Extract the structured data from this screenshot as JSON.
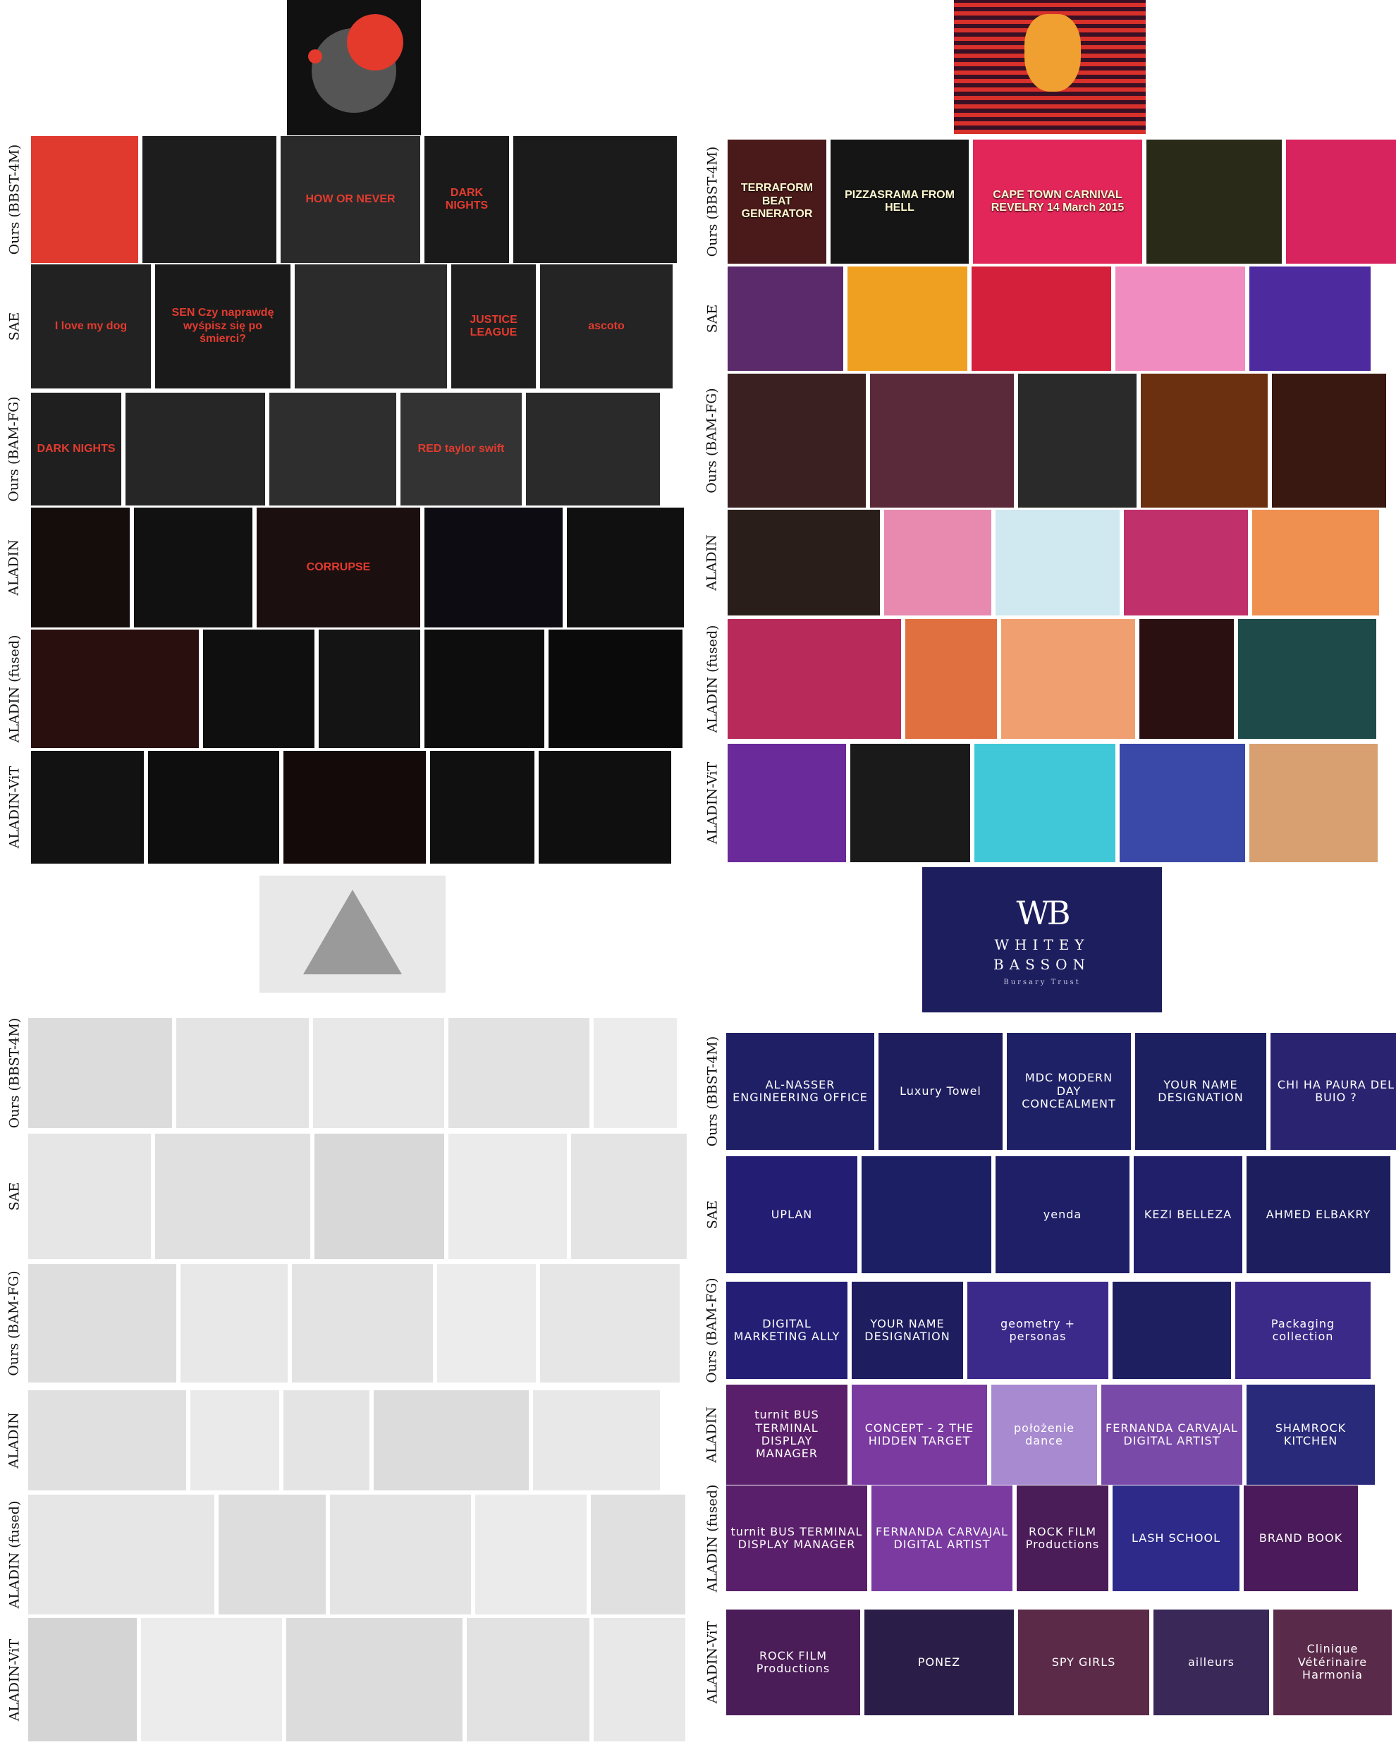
{
  "row_labels": [
    "Ours (BBST-4M)",
    "SAE",
    "Ours (BAM-FG)",
    "ALADIN",
    "ALADIN (fused)",
    "ALADIN-ViT"
  ],
  "panels": [
    {
      "theme": "red",
      "query": {
        "icon": "heart-flower-art-icon",
        "bg": "#111111",
        "accent": "#e33a2c"
      },
      "rows": [
        {
          "texts": [
            "",
            "",
            "HOW OR NEVER",
            "DARK NIGHTS",
            ""
          ],
          "colors": [
            "#e03a2e",
            "#1d1d1d",
            "#2a2a2a",
            "#1a1a1a",
            "#1b1b1b"
          ]
        },
        {
          "texts": [
            "I love my dog",
            "SEN Czy naprawdę wyśpisz się po śmierci?",
            "",
            "JUSTICE LEAGUE",
            "ascoto"
          ],
          "colors": [
            "#222222",
            "#1a1a1a",
            "#2b2b2b",
            "#1f1f1f",
            "#242424"
          ]
        },
        {
          "texts": [
            "DARK NIGHTS",
            "",
            "",
            "RED taylor swift",
            ""
          ],
          "colors": [
            "#1f1f1f",
            "#262626",
            "#2e2e2e",
            "#333333",
            "#2a2a2a"
          ]
        },
        {
          "texts": [
            "",
            "",
            "CORRUPSE",
            "",
            ""
          ],
          "colors": [
            "#150c0c",
            "#111111",
            "#1c0f0f",
            "#0c0c12",
            "#101010"
          ]
        },
        {
          "texts": [
            "",
            "",
            "",
            "",
            ""
          ],
          "colors": [
            "#2a0f0f",
            "#0f0f0f",
            "#141414",
            "#0d0d0d",
            "#0a0a0a"
          ]
        },
        {
          "texts": [
            "",
            "",
            "",
            "",
            ""
          ],
          "colors": [
            "#121212",
            "#0e0e0e",
            "#140a0a",
            "#101010",
            "#0f0f0f"
          ]
        }
      ]
    },
    {
      "theme": "pop",
      "query": {
        "icon": "portrait-art-icon",
        "bg": "#3a1024",
        "accent": "#f0a030"
      },
      "rows": [
        {
          "texts": [
            "TERRAFORM BEAT GENERATOR",
            "PIZZASRAMA FROM HELL",
            "CAPE TOWN CARNIVAL REVELRY 14 March 2015",
            "",
            ""
          ],
          "colors": [
            "#4a1a1a",
            "#151515",
            "#e2265a",
            "#2a2a18",
            "#d8245e"
          ]
        },
        {
          "texts": [
            "",
            "",
            "",
            "",
            ""
          ],
          "colors": [
            "#5b2a6b",
            "#f0a020",
            "#d4203a",
            "#f08cc0",
            "#4d2a9e"
          ]
        },
        {
          "texts": [
            "",
            "",
            "",
            "",
            ""
          ],
          "colors": [
            "#3a2020",
            "#5a2a3a",
            "#2a2a2a",
            "#6a3010",
            "#3a1812"
          ]
        },
        {
          "texts": [
            "",
            "",
            "",
            "",
            ""
          ],
          "colors": [
            "#2a1e1a",
            "#e88ab0",
            "#d0e8f0",
            "#c0306a",
            "#f09050"
          ]
        },
        {
          "texts": [
            "",
            "",
            "",
            "",
            ""
          ],
          "colors": [
            "#b82a5a",
            "#e07040",
            "#f0a070",
            "#2a1010",
            "#1e4a4a"
          ]
        },
        {
          "texts": [
            "",
            "",
            "",
            "",
            ""
          ],
          "colors": [
            "#6a2a9a",
            "#1a1a1a",
            "#40c8d8",
            "#3a48a8",
            "#d8a070"
          ]
        }
      ]
    },
    {
      "theme": "sketch",
      "query": {
        "icon": "pyramid-sketch-icon",
        "bg": "#e8e8e8",
        "accent": "#8a8a8a"
      },
      "rows": [
        {
          "texts": [
            "",
            "",
            "",
            "",
            ""
          ],
          "colors": [
            "#dcdcdc",
            "#e4e4e4",
            "#e8e8e8",
            "#e2e2e2",
            "#ececec"
          ]
        },
        {
          "texts": [
            "",
            "",
            "",
            "",
            ""
          ],
          "colors": [
            "#e6e6e6",
            "#e0e0e0",
            "#d8d8d8",
            "#ebebeb",
            "#e4e4e4"
          ]
        },
        {
          "texts": [
            "",
            "",
            "",
            "",
            ""
          ],
          "colors": [
            "#dedede",
            "#e8e8e8",
            "#e3e3e3",
            "#ececec",
            "#e6e6e6"
          ]
        },
        {
          "texts": [
            "",
            "",
            "",
            "",
            ""
          ],
          "colors": [
            "#e0e0e0",
            "#eaeaea",
            "#e4e4e4",
            "#dcdcdc",
            "#e8e8e8"
          ]
        },
        {
          "texts": [
            "",
            "",
            "",
            "",
            ""
          ],
          "colors": [
            "#e6e6e6",
            "#dddddd",
            "#e4e4e4",
            "#ebebeb",
            "#e0e0e0"
          ]
        },
        {
          "texts": [
            "",
            "",
            "",
            "",
            ""
          ],
          "colors": [
            "#d4d4d4",
            "#ececec",
            "#dcdcdc",
            "#e2e2e2",
            "#e8e8e8"
          ]
        }
      ]
    },
    {
      "theme": "brand",
      "query": {
        "icon": "monogram-logo-icon",
        "bg": "#1d1e5e",
        "accent": "#ffffff",
        "lines": [
          "WB",
          "WHITEY",
          "BASSON",
          "Bursary Trust"
        ]
      },
      "rows": [
        {
          "texts": [
            "AL-NASSER ENGINEERING OFFICE",
            "Luxury Towel",
            "MDC MODERN DAY CONCEALMENT",
            "YOUR NAME DESIGNATION",
            "CHI HA PAURA DEL BUIO ?"
          ],
          "colors": [
            "#1f1f66",
            "#1e1d5e",
            "#1e2166",
            "#1c1f60",
            "#2a2470"
          ]
        },
        {
          "texts": [
            "UPLAN",
            "",
            "yenda",
            "KEZI BELLEZA",
            "AHMED ELBAKRY"
          ],
          "colors": [
            "#241d74",
            "#1c1f64",
            "#1e1f66",
            "#221f6a",
            "#1d1e5e"
          ]
        },
        {
          "texts": [
            "DIGITAL MARKETING ALLY",
            "YOUR NAME DESIGNATION",
            "geometry + personas",
            "",
            "Packaging collection"
          ],
          "colors": [
            "#241f74",
            "#1e1d60",
            "#3c2a8a",
            "#1e1f60",
            "#3b2a88"
          ]
        },
        {
          "texts": [
            "turnit BUS TERMINAL DISPLAY MANAGER",
            "CONCEPT - 2 THE HIDDEN TARGET",
            "położenie dance",
            "FERNANDA CARVAJAL DIGITAL ARTIST",
            "SHAMROCK KITCHEN"
          ],
          "colors": [
            "#5a1f6a",
            "#7a3aa0",
            "#a88ad0",
            "#7a4aa8",
            "#2a2a7a"
          ]
        },
        {
          "texts": [
            "turnit BUS TERMINAL DISPLAY MANAGER",
            "FERNANDA CARVAJAL DIGITAL ARTIST",
            "ROCK FILM Productions",
            "LASH SCHOOL",
            "BRAND BOOK"
          ],
          "colors": [
            "#5a1f6a",
            "#7a3aa0",
            "#4a1c58",
            "#2e2a8a",
            "#4a1a5a"
          ]
        },
        {
          "texts": [
            "ROCK FILM Productions",
            "PONEZ",
            "SPY GIRLS",
            "ailleurs",
            "Clinique Vétérinaire Harmonia"
          ],
          "colors": [
            "#4a1c58",
            "#2a1e48",
            "#5a2a48",
            "#3a2858",
            "#5a2a4a"
          ]
        }
      ]
    }
  ]
}
